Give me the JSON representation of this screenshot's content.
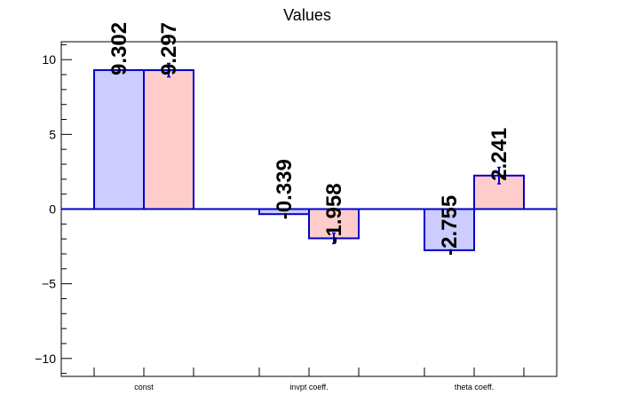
{
  "chart_data": {
    "type": "bar",
    "title": "Values",
    "xlabel": "",
    "ylabel": "",
    "categories": [
      "const",
      "invpt coeff.",
      "theta coeff."
    ],
    "ylim": [
      -11.2,
      11.2
    ],
    "yticks": [
      -10,
      -5,
      0,
      5,
      10
    ],
    "ytick_labels": [
      "−10",
      "−5",
      "0",
      "5",
      "10"
    ],
    "grid": false,
    "series": [
      {
        "values": [
          9.302,
          -0.339,
          -2.755
        ],
        "labels": [
          "9.302",
          "-0.339",
          "-2.755"
        ],
        "errors": [
          0,
          0,
          0
        ],
        "fill": "#ccccff",
        "stroke": "#0000cc"
      },
      {
        "values": [
          9.297,
          -1.958,
          2.241
        ],
        "labels": [
          "9.297",
          "-1.958",
          "2.241"
        ],
        "errors": [
          0.45,
          0.35,
          0.55
        ],
        "fill": "#ffcccc",
        "stroke": "#0000cc"
      }
    ]
  }
}
